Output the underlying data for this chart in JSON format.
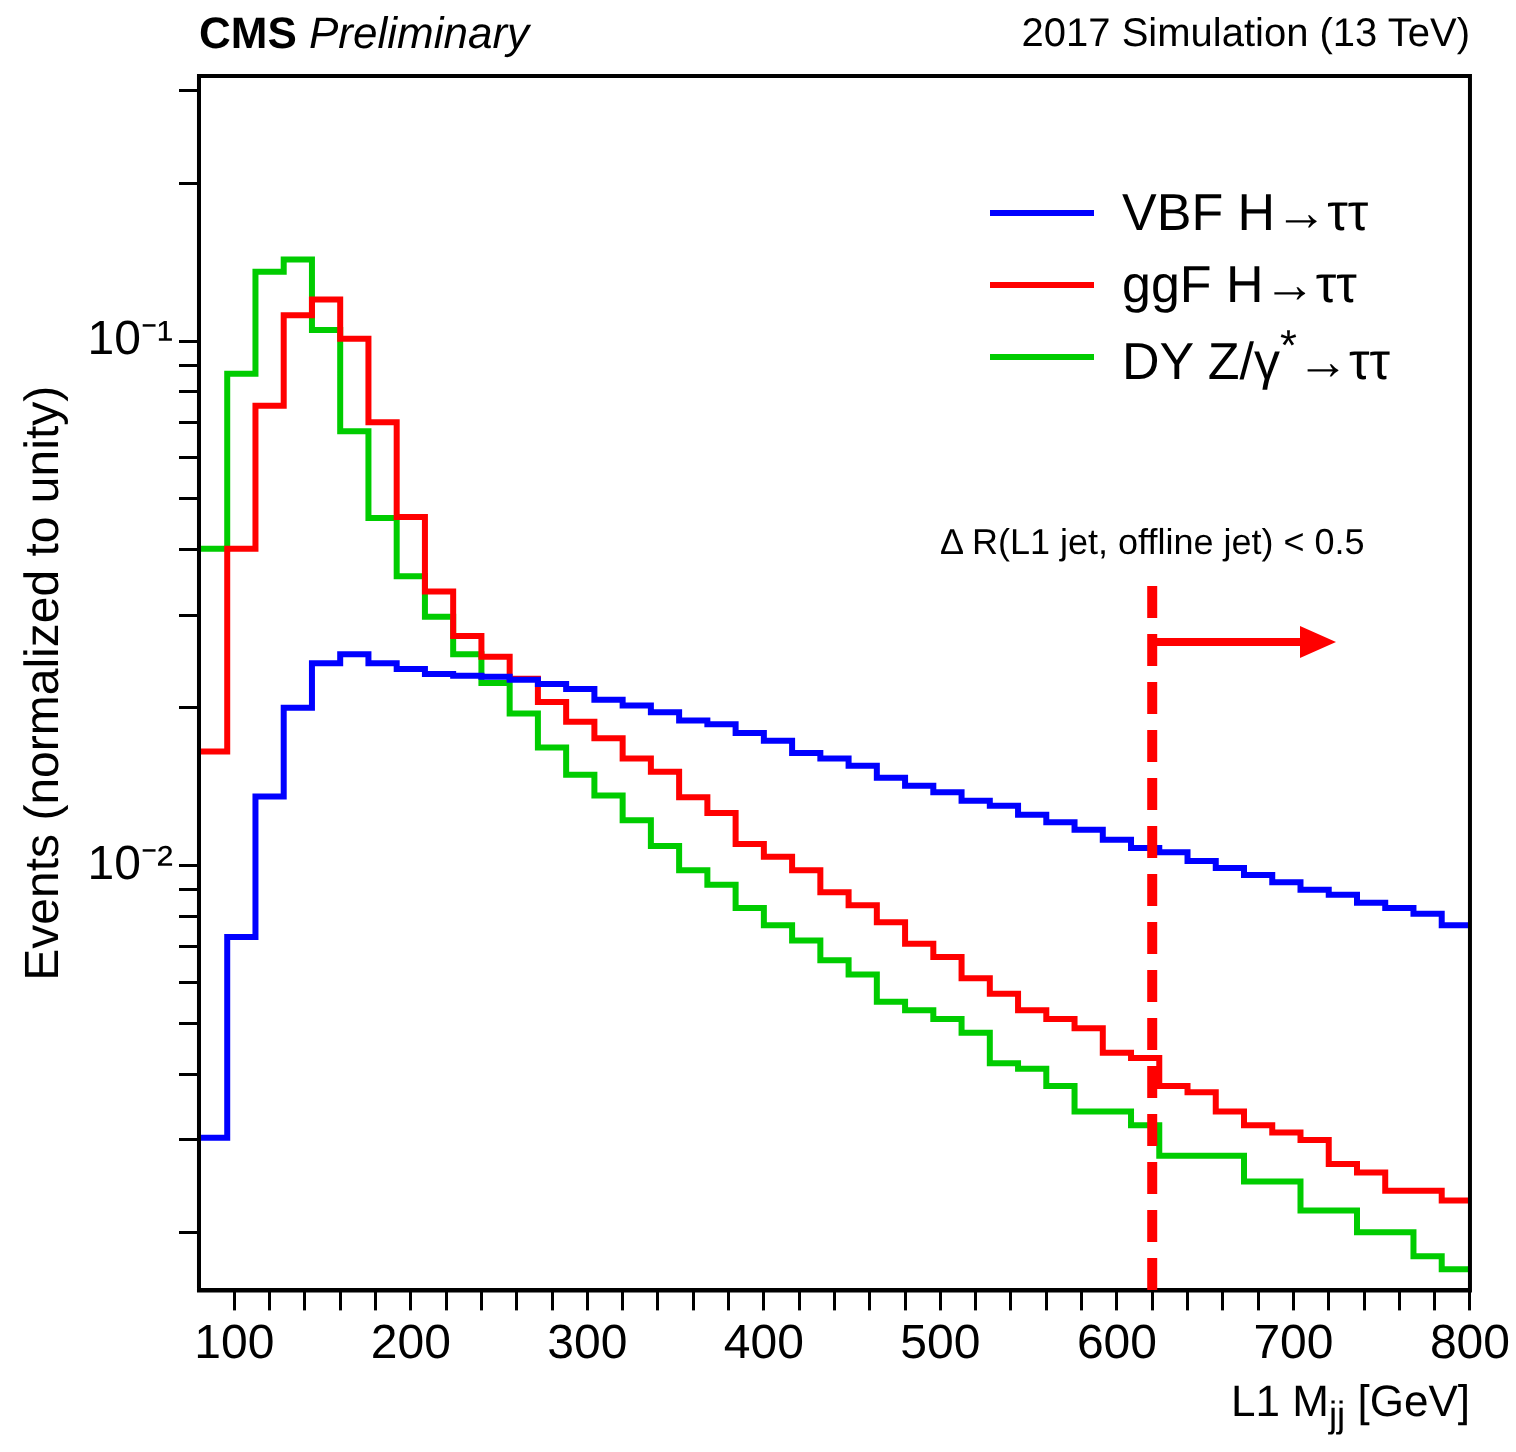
{
  "chart_data": {
    "type": "histogram",
    "title": "CMS",
    "subtitle": "Preliminary",
    "annotations": [
      "2017 Simulation (13 TeV)"
    ],
    "xlabel": "L1 M$_{jj}$ [GeV]",
    "ylabel": "Events (normalized to unity)",
    "bins": [
      80,
      96,
      112,
      128,
      144,
      160,
      176,
      192,
      208,
      224,
      240,
      256,
      272,
      288,
      304,
      320,
      336,
      352,
      368,
      384,
      400,
      416,
      432,
      448,
      464,
      480,
      496,
      512,
      528,
      544,
      560,
      576,
      592,
      608,
      624,
      640,
      656,
      672,
      688,
      704,
      720,
      736,
      752,
      768,
      784,
      800
    ],
    "series": [
      {
        "name": "VBF H→ττ",
        "color": "#0000ff",
        "values": [
          0.00303,
          0.00731,
          0.01355,
          0.02,
          0.0243,
          0.0253,
          0.0243,
          0.0237,
          0.0232,
          0.023,
          0.0229,
          0.0226,
          0.0222,
          0.0217,
          0.0207,
          0.0202,
          0.0196,
          0.0189,
          0.0186,
          0.0179,
          0.0173,
          0.0164,
          0.016,
          0.0155,
          0.0147,
          0.0142,
          0.0138,
          0.0133,
          0.013,
          0.0125,
          0.0121,
          0.0117,
          0.0112,
          0.0108,
          0.0106,
          0.0102,
          0.0099,
          0.0096,
          0.0093,
          0.009,
          0.0088,
          0.0085,
          0.0083,
          0.0081,
          0.0077
        ]
      },
      {
        "name": "ggF H→ττ",
        "color": "#ff0000",
        "values": [
          0.0165,
          0.0402,
          0.0753,
          0.112,
          0.12,
          0.101,
          0.07,
          0.0462,
          0.0333,
          0.0274,
          0.025,
          0.0227,
          0.0205,
          0.0188,
          0.0175,
          0.016,
          0.0151,
          0.0135,
          0.0126,
          0.011,
          0.0104,
          0.0098,
          0.0089,
          0.0084,
          0.0078,
          0.0071,
          0.0067,
          0.0061,
          0.0057,
          0.0053,
          0.0051,
          0.0049,
          0.0044,
          0.0043,
          0.0038,
          0.0037,
          0.0034,
          0.0032,
          0.0031,
          0.003,
          0.0027,
          0.0026,
          0.0024,
          0.0024,
          0.0023
        ]
      },
      {
        "name": "DY Z/γ$^{*}$→ττ",
        "color": "#00cc00",
        "values": [
          0.0402,
          0.0866,
          0.1355,
          0.143,
          0.105,
          0.0673,
          0.046,
          0.0356,
          0.0298,
          0.0253,
          0.0223,
          0.0195,
          0.0168,
          0.0149,
          0.0136,
          0.0122,
          0.0109,
          0.0098,
          0.0092,
          0.0083,
          0.0077,
          0.0072,
          0.0066,
          0.0062,
          0.0055,
          0.0053,
          0.0051,
          0.0048,
          0.0042,
          0.0041,
          0.0038,
          0.0034,
          0.0034,
          0.0032,
          0.0028,
          0.0028,
          0.0028,
          0.0025,
          0.0025,
          0.0022,
          0.0022,
          0.002,
          0.002,
          0.0018,
          0.0017
        ]
      }
    ],
    "xlim": [
      80,
      800
    ],
    "xticks": [
      100,
      {
        "value": 120,
        "label": null
      },
      {
        "value": 140,
        "label": null
      },
      {
        "value": 160,
        "label": null
      },
      {
        "value": 180,
        "label": null
      },
      200,
      {
        "value": 220,
        "label": null
      },
      {
        "value": 240,
        "label": null
      },
      {
        "value": 260,
        "label": null
      },
      {
        "value": 280,
        "label": null
      },
      300,
      {
        "value": 320,
        "label": null
      },
      {
        "value": 340,
        "label": null
      },
      {
        "value": 360,
        "label": null
      },
      {
        "value": 380,
        "label": null
      },
      400,
      {
        "value": 420,
        "label": null
      },
      {
        "value": 440,
        "label": null
      },
      {
        "value": 460,
        "label": null
      },
      {
        "value": 480,
        "label": null
      },
      500,
      {
        "value": 520,
        "label": null
      },
      {
        "value": 540,
        "label": null
      },
      {
        "value": 560,
        "label": null
      },
      {
        "value": 580,
        "label": null
      },
      600,
      {
        "value": 620,
        "label": null
      },
      {
        "value": 640,
        "label": null
      },
      {
        "value": 660,
        "label": null
      },
      {
        "value": 680,
        "label": null
      },
      700,
      {
        "value": 720,
        "label": null
      },
      {
        "value": 740,
        "label": null
      },
      {
        "value": 760,
        "label": null
      },
      {
        "value": 780,
        "label": null
      },
      800
    ],
    "ylim": [
      0.00155,
      0.32
    ],
    "yticks": [
      {
        "value": 0.002,
        "label": null
      },
      {
        "value": 0.003,
        "label": null
      },
      {
        "value": 0.004,
        "label": null
      },
      {
        "value": 0.005,
        "label": null
      },
      {
        "value": 0.006,
        "label": null
      },
      {
        "value": 0.007,
        "label": null
      },
      {
        "value": 0.008,
        "label": null
      },
      {
        "value": 0.009,
        "label": null
      },
      {
        "value": 0.01,
        "label": "10⁻²"
      },
      {
        "value": 0.02,
        "label": null
      },
      {
        "value": 0.03,
        "label": null
      },
      {
        "value": 0.04,
        "label": null
      },
      {
        "value": 0.05,
        "label": null
      },
      {
        "value": 0.06,
        "label": null
      },
      {
        "value": 0.07,
        "label": null
      },
      {
        "value": 0.08,
        "label": null
      },
      {
        "value": 0.09,
        "label": null
      },
      {
        "value": 0.1,
        "label": "10⁻¹"
      },
      {
        "value": 0.2,
        "label": null
      },
      {
        "value": 0.3,
        "label": null
      }
    ],
    "log": "y",
    "grid": false,
    "legend": "top right",
    "ref_lines": [
      {
        "axis": "x",
        "value": 620,
        "label": "Δ R(L1 jet, offline jet) < 0.5",
        "color": "#ff0000",
        "line_style": "dashed"
      }
    ]
  }
}
